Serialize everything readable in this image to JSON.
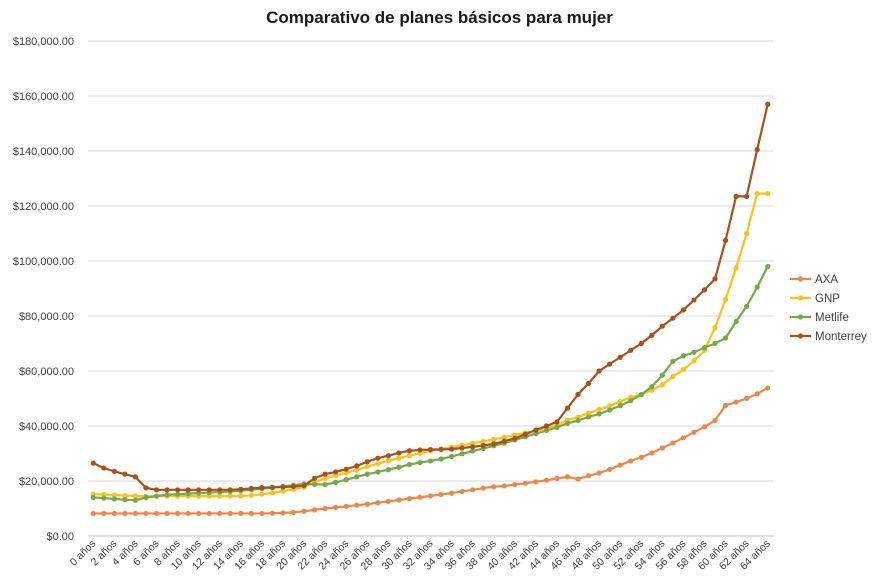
{
  "chart_data": {
    "type": "line",
    "title": "Comparativo de planes básicos para mujer",
    "xlabel": "",
    "ylabel": "",
    "ylim": [
      0,
      180000
    ],
    "y_ticks": [
      0,
      20000,
      40000,
      60000,
      80000,
      100000,
      120000,
      140000,
      160000,
      180000
    ],
    "y_tick_labels": [
      "$0.00",
      "$20,000.00",
      "$40,000.00",
      "$60,000.00",
      "$80,000.00",
      "$100,000.00",
      "$120,000.00",
      "$140,000.00",
      "$160,000.00",
      "$180,000.00"
    ],
    "grid": true,
    "legend_position": "right",
    "x": [
      "0 años",
      "1 años",
      "2 años",
      "3 años",
      "4 años",
      "5 años",
      "6 años",
      "7 años",
      "8 años",
      "9 años",
      "10 años",
      "11 años",
      "12 años",
      "13 años",
      "14 años",
      "15 años",
      "16 años",
      "17 años",
      "18 años",
      "19 años",
      "20 años",
      "21 años",
      "22 años",
      "23 años",
      "24 años",
      "25 años",
      "26 años",
      "27 años",
      "28 años",
      "29 años",
      "30 años",
      "31 años",
      "32 años",
      "33 años",
      "34 años",
      "35 años",
      "36 años",
      "37 años",
      "38 años",
      "39 años",
      "40 años",
      "41 años",
      "42 años",
      "43 años",
      "44 años",
      "45 años",
      "46 años",
      "47 años",
      "48 años",
      "49 años",
      "50 años",
      "51 años",
      "52 años",
      "53 años",
      "54 años",
      "55 años",
      "56 años",
      "57 años",
      "58 años",
      "59 años",
      "60 años",
      "61 años",
      "62 años",
      "63 años",
      "64 años"
    ],
    "x_tick_labels": [
      "0 años",
      "2 años",
      "4 años",
      "6 años",
      "8 años",
      "10 años",
      "12 años",
      "14 años",
      "16 años",
      "18 años",
      "20 años",
      "22 años",
      "24 años",
      "26 años",
      "28 años",
      "30 años",
      "32 años",
      "34 años",
      "36 años",
      "38 años",
      "40 años",
      "42 años",
      "44 años",
      "46 años",
      "48 años",
      "50 años",
      "52 años",
      "54 años",
      "56 años",
      "58 años",
      "60 años",
      "62 años",
      "64 años"
    ],
    "series": [
      {
        "name": "AXA",
        "color": "#E9884A",
        "values": [
          8200,
          8200,
          8200,
          8200,
          8200,
          8200,
          8200,
          8200,
          8200,
          8200,
          8200,
          8200,
          8200,
          8200,
          8200,
          8200,
          8200,
          8300,
          8400,
          8600,
          9000,
          9500,
          10000,
          10400,
          10800,
          11200,
          11600,
          12100,
          12600,
          13100,
          13600,
          14100,
          14600,
          15100,
          15600,
          16200,
          16800,
          17400,
          17900,
          18200,
          18700,
          19200,
          19700,
          20300,
          20900,
          21500,
          20700,
          21900,
          22900,
          24200,
          25800,
          27300,
          28600,
          30200,
          32000,
          33800,
          35700,
          37700,
          39700,
          42000,
          47500,
          48700,
          50000,
          51700,
          53800
        ]
      },
      {
        "name": "GNP",
        "color": "#F7C21A",
        "values": [
          15200,
          15100,
          14900,
          14700,
          14600,
          14400,
          14500,
          14500,
          14500,
          14500,
          14500,
          14500,
          14500,
          14500,
          14600,
          14800,
          15200,
          15700,
          16300,
          17000,
          17800,
          19600,
          21000,
          22000,
          23000,
          24000,
          25200,
          26300,
          27400,
          28300,
          29200,
          30100,
          31000,
          31600,
          32300,
          33000,
          33700,
          34400,
          35100,
          35900,
          36700,
          37500,
          38400,
          39300,
          40300,
          42200,
          43200,
          44700,
          46000,
          47300,
          48900,
          50400,
          51500,
          53000,
          55000,
          58000,
          60500,
          63700,
          67500,
          75800,
          86000,
          97500,
          110000,
          124500,
          124500
        ]
      },
      {
        "name": "Metlife",
        "color": "#76A84A",
        "values": [
          14000,
          13800,
          13500,
          13200,
          13000,
          14000,
          14500,
          15000,
          15200,
          15400,
          15600,
          15800,
          16000,
          16200,
          16500,
          16800,
          17200,
          17600,
          18000,
          18500,
          18900,
          18800,
          18700,
          19500,
          20500,
          21500,
          22500,
          23300,
          24100,
          25000,
          26000,
          26700,
          27300,
          28000,
          28900,
          29900,
          30900,
          31800,
          32800,
          33800,
          34900,
          36100,
          37200,
          38400,
          39500,
          41000,
          42000,
          43300,
          44400,
          45800,
          47400,
          49200,
          51400,
          54300,
          58500,
          63500,
          65500,
          66800,
          68500,
          70000,
          72000,
          78000,
          83500,
          90500,
          98000
        ]
      },
      {
        "name": "Monterrey",
        "color": "#A6521C",
        "values": [
          26500,
          24700,
          23500,
          22500,
          21500,
          17500,
          16800,
          16800,
          16800,
          16800,
          16800,
          16800,
          16800,
          16800,
          17000,
          17300,
          17600,
          17700,
          17800,
          18000,
          18300,
          21000,
          22500,
          23300,
          24300,
          25500,
          27000,
          28300,
          29200,
          30200,
          31000,
          31300,
          31400,
          31500,
          31600,
          32000,
          32400,
          32900,
          33500,
          34500,
          35500,
          37000,
          38500,
          40000,
          41500,
          46500,
          51500,
          55500,
          60000,
          62500,
          65000,
          67500,
          70000,
          73000,
          76300,
          79200,
          82200,
          85800,
          89500,
          93500,
          107500,
          123500,
          123500,
          140500,
          157000
        ]
      }
    ]
  }
}
